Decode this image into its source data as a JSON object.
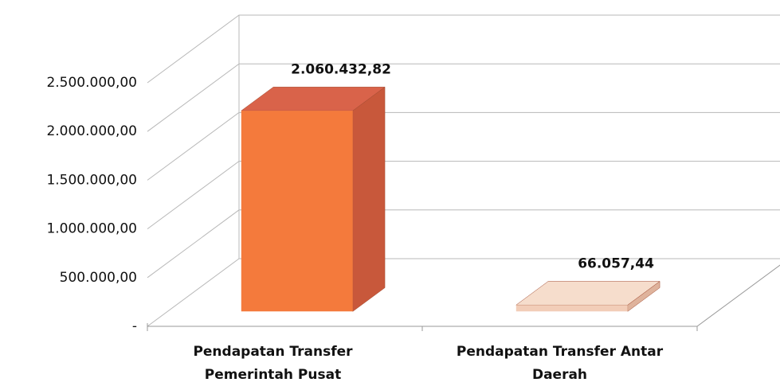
{
  "chart_data": {
    "type": "bar3d",
    "categories": [
      "Pendapatan Transfer Pemerintah Pusat",
      "Pendapatan Transfer Antar Daerah"
    ],
    "values": [
      2060432.82,
      66057.44
    ],
    "value_labels": [
      "2.060.432,82",
      "66.057,44"
    ],
    "colors": [
      "#f47a3c",
      "#f2cdb8"
    ],
    "ylim": [
      0,
      2500000
    ],
    "yticks": [
      {
        "value": 0,
        "label": "-"
      },
      {
        "value": 500000,
        "label": "500.000,00"
      },
      {
        "value": 1000000,
        "label": "1.000.000,00"
      },
      {
        "value": 1500000,
        "label": "1.500.000,00"
      },
      {
        "value": 2000000,
        "label": "2.000.000,00"
      },
      {
        "value": 2500000,
        "label": "2.500.000,00"
      }
    ],
    "grid": true
  }
}
